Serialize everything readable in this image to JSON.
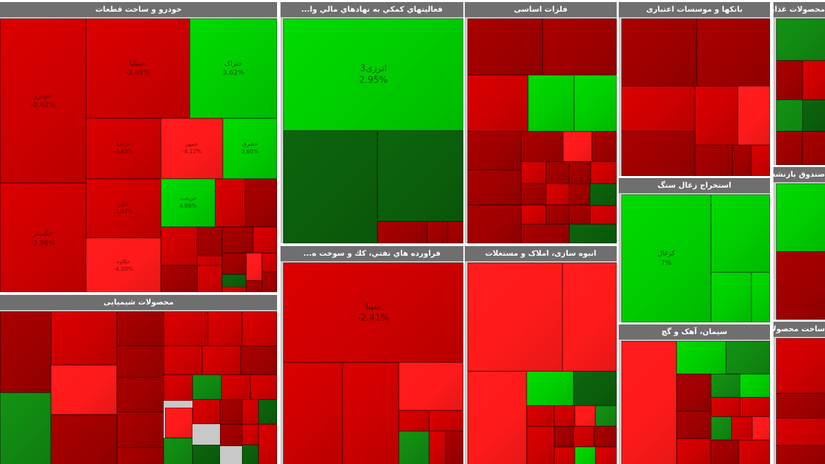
{
  "colors": {
    "rg": "#00cc00",
    "rm": "#118811",
    "rd": "#0b5e0b",
    "rr": "#ff1a1a",
    "rb": "#cc0000",
    "rx": "#9e0000"
  },
  "chart_data": {
    "type": "treemap",
    "sectors": [
      {
        "id": "auto",
        "title": "خودرو و ساخت قطعات",
        "tiles": [
          {
            "label": "خودرو",
            "value": "-2.43%",
            "c": "rb"
          },
          {
            "label": "خگستر",
            "value": "-2.96%",
            "c": "rb"
          },
          {
            "label": "خساپا",
            "value": "-2.85%",
            "c": "rb"
          },
          {
            "label": "خزامیا",
            "value": "-3.63%",
            "c": "rb"
          },
          {
            "label": "ختور",
            "value": "-1.97%",
            "c": "rb"
          },
          {
            "label": "خکاوه",
            "value": "-4.00%",
            "c": "rr"
          },
          {
            "label": "ختراک",
            "value": "3.62%",
            "c": "rg"
          },
          {
            "label": "خمهر",
            "value": "-4.12%",
            "c": "rr"
          },
          {
            "label": "خشرق",
            "value": "3.60%",
            "c": "rg"
          },
          {
            "label": "خریخت",
            "value": "4.86%",
            "c": "rg"
          },
          {
            "label": "",
            "value": "",
            "c": "rb"
          },
          {
            "label": "",
            "value": "",
            "c": "rx"
          },
          {
            "label": "",
            "value": "",
            "c": "rb"
          },
          {
            "label": "",
            "value": "",
            "c": "rx"
          },
          {
            "label": "",
            "value": "",
            "c": "rx"
          },
          {
            "label": "",
            "value": "",
            "c": "rb"
          },
          {
            "label": "",
            "value": "",
            "c": "rx"
          },
          {
            "label": "",
            "value": "",
            "c": "rb"
          },
          {
            "label": "",
            "value": "",
            "c": "rx"
          },
          {
            "label": "",
            "value": "",
            "c": "rd"
          },
          {
            "label": "",
            "value": "",
            "c": "rr"
          },
          {
            "label": "",
            "value": "",
            "c": "rb"
          },
          {
            "label": "",
            "value": "",
            "c": "rx"
          },
          {
            "label": "",
            "value": "",
            "c": "rx"
          },
          {
            "label": "",
            "value": "",
            "c": "rb"
          },
          {
            "label": "",
            "value": "",
            "c": "rb"
          }
        ]
      },
      {
        "id": "financial",
        "title": "فعاليتهاي كمكي به نهادهاي مالي وا...",
        "tiles": [
          {
            "label": "انرژی3",
            "value": "2.95%",
            "c": "rg"
          },
          {
            "label": "",
            "value": "",
            "c": "rd"
          },
          {
            "label": "",
            "value": "",
            "c": "rd"
          },
          {
            "label": "",
            "value": "",
            "c": "rx"
          },
          {
            "label": "",
            "value": "",
            "c": "rx"
          },
          {
            "label": "",
            "value": "",
            "c": "rx"
          }
        ]
      },
      {
        "id": "metals",
        "title": "فلزات اساسی",
        "tiles": [
          {
            "label": "",
            "value": "",
            "c": "rx"
          },
          {
            "label": "",
            "value": "",
            "c": "rx"
          },
          {
            "label": "",
            "value": "",
            "c": "rb"
          },
          {
            "label": "",
            "value": "",
            "c": "rg"
          },
          {
            "label": "",
            "value": "",
            "c": "rg"
          },
          {
            "label": "",
            "value": "",
            "c": "rx"
          },
          {
            "label": "",
            "value": "",
            "c": "rx"
          },
          {
            "label": "",
            "value": "",
            "c": "rr"
          },
          {
            "label": "",
            "value": "",
            "c": "rx"
          },
          {
            "label": "",
            "value": "",
            "c": "rx"
          },
          {
            "label": "",
            "value": "",
            "c": "rb"
          },
          {
            "label": "",
            "value": "",
            "c": "rx"
          },
          {
            "label": "",
            "value": "",
            "c": "rx"
          },
          {
            "label": "",
            "value": "",
            "c": "rb"
          },
          {
            "label": "",
            "value": "",
            "c": "rx"
          },
          {
            "label": "",
            "value": "",
            "c": "rb"
          },
          {
            "label": "",
            "value": "",
            "c": "rx"
          },
          {
            "label": "",
            "value": "",
            "c": "rd"
          },
          {
            "label": "",
            "value": "",
            "c": "rx"
          },
          {
            "label": "",
            "value": "",
            "c": "rb"
          },
          {
            "label": "",
            "value": "",
            "c": "rx"
          },
          {
            "label": "",
            "value": "",
            "c": "rx"
          },
          {
            "label": "",
            "value": "",
            "c": "rb"
          },
          {
            "label": "",
            "value": "",
            "c": "rx"
          },
          {
            "label": "",
            "value": "",
            "c": "rd"
          }
        ]
      },
      {
        "id": "banks",
        "title": "بانکها و موسسات اعتباری",
        "tiles": [
          {
            "label": "",
            "value": "",
            "c": "rx"
          },
          {
            "label": "",
            "value": "",
            "c": "rx"
          },
          {
            "label": "",
            "value": "",
            "c": "rb"
          },
          {
            "label": "",
            "value": "",
            "c": "rx"
          },
          {
            "label": "",
            "value": "",
            "c": "rb"
          },
          {
            "label": "",
            "value": "",
            "c": "rr"
          },
          {
            "label": "",
            "value": "",
            "c": "rx"
          },
          {
            "label": "",
            "value": "",
            "c": "rx"
          },
          {
            "label": "",
            "value": "",
            "c": "rb"
          }
        ]
      },
      {
        "id": "coal",
        "title": "استخراج زغال سنگ",
        "tiles": [
          {
            "label": "کزغال",
            "value": "7%",
            "c": "rg"
          },
          {
            "label": "",
            "value": "",
            "c": "rg"
          },
          {
            "label": "",
            "value": "",
            "c": "rg"
          },
          {
            "label": "",
            "value": "",
            "c": "rg"
          }
        ]
      },
      {
        "id": "food",
        "title": "محصولات غذایی و آشا...",
        "tiles": [
          {
            "label": "",
            "value": "",
            "c": "rm"
          },
          {
            "label": "",
            "value": "",
            "c": "rx"
          },
          {
            "label": "",
            "value": "",
            "c": "rb"
          },
          {
            "label": "",
            "value": "",
            "c": "rm"
          },
          {
            "label": "",
            "value": "",
            "c": "rx"
          },
          {
            "label": "",
            "value": "",
            "c": "rx"
          },
          {
            "label": "",
            "value": "",
            "c": "rb"
          },
          {
            "label": "",
            "value": "",
            "c": "rd"
          }
        ]
      },
      {
        "id": "fund",
        "title": "صندوق بازنشس...",
        "tiles": [
          {
            "label": "",
            "value": "",
            "c": "rg"
          },
          {
            "label": "",
            "value": "",
            "c": "rx"
          }
        ]
      },
      {
        "id": "chem",
        "title": "محصولات شیمیایی",
        "tiles": [
          {
            "label": "",
            "value": "",
            "c": "rx"
          },
          {
            "label": "",
            "value": "",
            "c": "rm"
          },
          {
            "label": "",
            "value": "",
            "c": "rb"
          },
          {
            "label": "",
            "value": "",
            "c": "rr"
          },
          {
            "label": "",
            "value": "",
            "c": "rx"
          },
          {
            "label": "",
            "value": "",
            "c": "rx"
          },
          {
            "label": "",
            "value": "",
            "c": "rx"
          },
          {
            "label": "",
            "value": "",
            "c": "rx"
          },
          {
            "label": "",
            "value": "",
            "c": "rx"
          },
          {
            "label": "",
            "value": "",
            "c": "rx"
          },
          {
            "label": "",
            "value": "",
            "c": "rb"
          },
          {
            "label": "",
            "value": "",
            "c": "rb"
          },
          {
            "label": "",
            "value": "",
            "c": "rb"
          },
          {
            "label": "",
            "value": "",
            "c": "rb"
          },
          {
            "label": "",
            "value": "",
            "c": "rb"
          },
          {
            "label": "",
            "value": "",
            "c": "rx"
          },
          {
            "label": "",
            "value": "",
            "c": "rm"
          },
          {
            "label": "",
            "value": "",
            "c": "rb"
          },
          {
            "label": "",
            "value": "",
            "c": "rb"
          },
          {
            "label": "",
            "value": "",
            "c": "rb"
          },
          {
            "label": "",
            "value": "",
            "c": "rr"
          },
          {
            "label": "",
            "value": "",
            "c": "rb"
          },
          {
            "label": "",
            "value": "",
            "c": "rx"
          },
          {
            "label": "",
            "value": "",
            "c": "rb"
          },
          {
            "label": "",
            "value": "",
            "c": "rd"
          },
          {
            "label": "",
            "value": "",
            "c": "rm"
          },
          {
            "label": "",
            "value": "",
            "c": "rd"
          },
          {
            "label": "",
            "value": "",
            "c": "rx"
          },
          {
            "label": "",
            "value": "",
            "c": "rb"
          },
          {
            "label": "",
            "value": "",
            "c": "rd"
          },
          {
            "label": "",
            "value": "",
            "c": "rb"
          }
        ]
      },
      {
        "id": "oil",
        "title": "فراورده هاي نفتي، كك و سوخت ه...",
        "tiles": [
          {
            "label": "شپنا",
            "value": "-2.41%",
            "c": "rb"
          },
          {
            "label": "",
            "value": "",
            "c": "rb"
          },
          {
            "label": "",
            "value": "",
            "c": "rb"
          },
          {
            "label": "",
            "value": "",
            "c": "rr"
          },
          {
            "label": "",
            "value": "",
            "c": "rb"
          },
          {
            "label": "",
            "value": "",
            "c": "rm"
          },
          {
            "label": "",
            "value": "",
            "c": "rb"
          },
          {
            "label": "",
            "value": "",
            "c": "rb"
          },
          {
            "label": "",
            "value": "",
            "c": "rx"
          }
        ]
      },
      {
        "id": "construction",
        "title": "انبوه سازی، املاک و مستغلات",
        "tiles": [
          {
            "label": "",
            "value": "",
            "c": "rr"
          },
          {
            "label": "",
            "value": "",
            "c": "rr"
          },
          {
            "label": "",
            "value": "",
            "c": "rr"
          },
          {
            "label": "",
            "value": "",
            "c": "rg"
          },
          {
            "label": "",
            "value": "",
            "c": "rd"
          },
          {
            "label": "",
            "value": "",
            "c": "rb"
          },
          {
            "label": "",
            "value": "",
            "c": "rb"
          },
          {
            "label": "",
            "value": "",
            "c": "rr"
          },
          {
            "label": "",
            "value": "",
            "c": "rm"
          },
          {
            "label": "",
            "value": "",
            "c": "rb"
          },
          {
            "label": "",
            "value": "",
            "c": "rx"
          },
          {
            "label": "",
            "value": "",
            "c": "rb"
          },
          {
            "label": "",
            "value": "",
            "c": "rx"
          },
          {
            "label": "",
            "value": "",
            "c": "rb"
          },
          {
            "label": "",
            "value": "",
            "c": "rg"
          },
          {
            "label": "",
            "value": "",
            "c": "rb"
          }
        ]
      },
      {
        "id": "cement",
        "title": "سیمان، آهک و گچ",
        "tiles": [
          {
            "label": "",
            "value": "",
            "c": "rr"
          },
          {
            "label": "",
            "value": "",
            "c": "rg"
          },
          {
            "label": "",
            "value": "",
            "c": "rm"
          },
          {
            "label": "",
            "value": "",
            "c": "rx"
          },
          {
            "label": "",
            "value": "",
            "c": "rm"
          },
          {
            "label": "",
            "value": "",
            "c": "rg"
          },
          {
            "label": "",
            "value": "",
            "c": "rb"
          },
          {
            "label": "",
            "value": "",
            "c": "rb"
          },
          {
            "label": "",
            "value": "",
            "c": "rx"
          },
          {
            "label": "",
            "value": "",
            "c": "rm"
          },
          {
            "label": "",
            "value": "",
            "c": "rb"
          },
          {
            "label": "",
            "value": "",
            "c": "rr"
          },
          {
            "label": "",
            "value": "",
            "c": "rb"
          },
          {
            "label": "",
            "value": "",
            "c": "rx"
          },
          {
            "label": "",
            "value": "",
            "c": "rb"
          }
        ]
      },
      {
        "id": "metalproducts",
        "title": "ساخت محصولات فلزی",
        "tiles": [
          {
            "label": "",
            "value": "",
            "c": "rb"
          },
          {
            "label": "",
            "value": "",
            "c": "rx"
          },
          {
            "label": "",
            "value": "",
            "c": "rb"
          },
          {
            "label": "",
            "value": "",
            "c": "rx"
          }
        ]
      }
    ]
  }
}
